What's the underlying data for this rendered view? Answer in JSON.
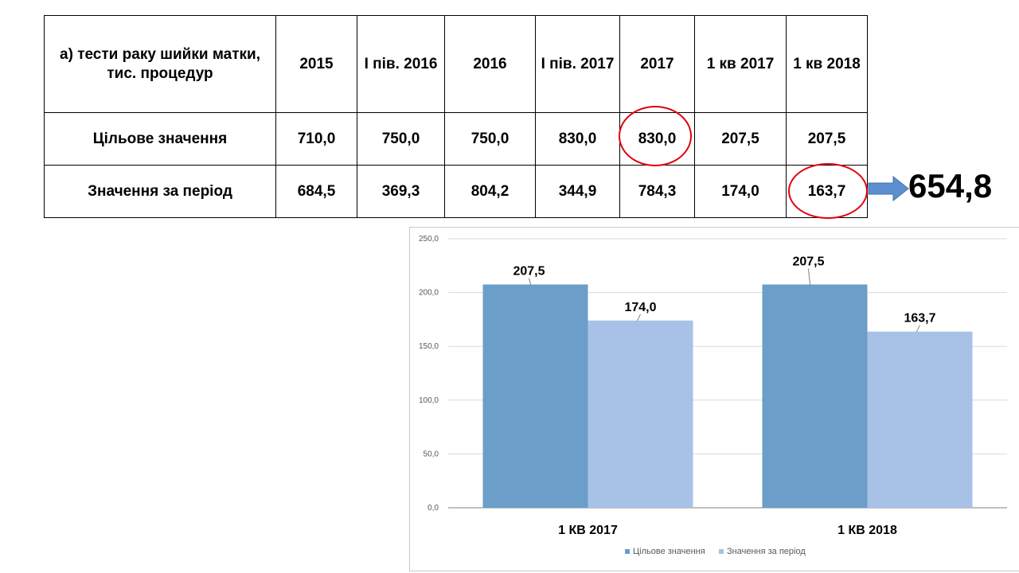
{
  "table": {
    "headers": [
      "а) тести раку шийки матки, тис. процедур",
      "2015",
      "І пів. 2016",
      "2016",
      "І пів. 2017",
      "2017",
      "1 кв 2017",
      "1 кв 2018"
    ],
    "rows": [
      {
        "label": "Цільове значення",
        "values": [
          "710,0",
          "750,0",
          "750,0",
          "830,0",
          "830,0",
          "207,5",
          "207,5"
        ]
      },
      {
        "label": "Значення за період",
        "values": [
          "684,5",
          "369,3",
          "804,2",
          "344,9",
          "784,3",
          "174,0",
          "163,7"
        ]
      }
    ]
  },
  "total": "654,8",
  "colors": {
    "series1": "#6b9ec8",
    "series2": "#a7c2e6",
    "arrow": "#5b8fd0",
    "highlight": "#e0000f"
  },
  "chart_data": {
    "type": "bar",
    "categories": [
      "1 КВ 2017",
      "1 КВ 2018"
    ],
    "series": [
      {
        "name": "Цільове значення",
        "values": [
          207.5,
          207.5
        ],
        "labels": [
          "207,5",
          "207,5"
        ]
      },
      {
        "name": "Значення за період",
        "values": [
          174.0,
          163.7
        ],
        "labels": [
          "174,0",
          "163,7"
        ]
      }
    ],
    "ylim": [
      0,
      250
    ],
    "yticks": [
      "0,0",
      "50,0",
      "100,0",
      "150,0",
      "200,0",
      "250,0"
    ],
    "grid": true,
    "legend": "bottom"
  }
}
